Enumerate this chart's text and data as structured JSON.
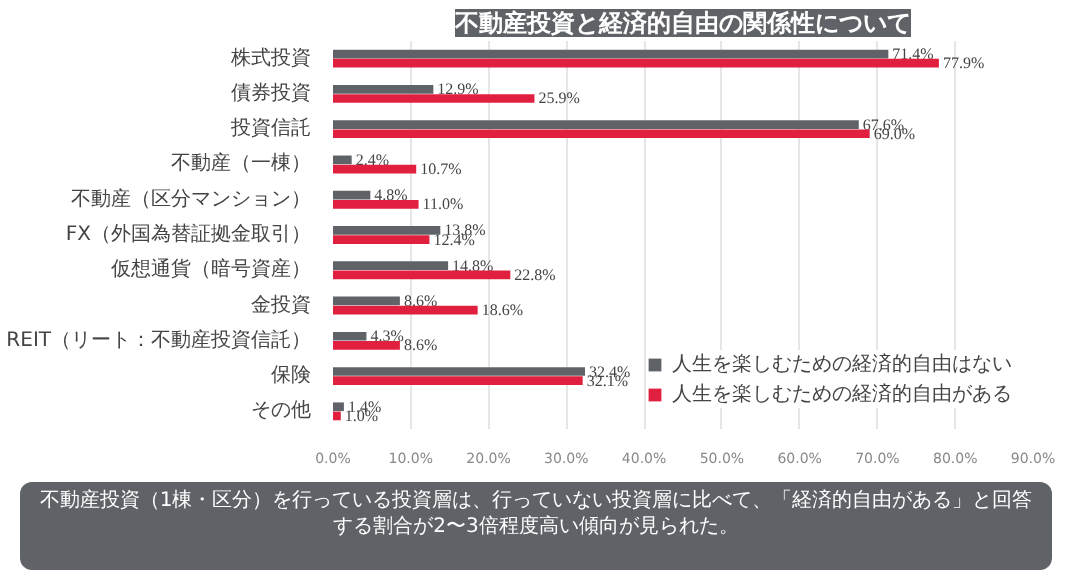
{
  "chart_data": {
    "type": "bar",
    "orientation": "horizontal",
    "title": "不動産投資と経済的自由の関係性について",
    "categories": [
      "株式投資",
      "債券投資",
      "投資信託",
      "不動産（一棟）",
      "不動産（区分マンション）",
      "FX（外国為替証拠金取引）",
      "仮想通貨（暗号資産）",
      "金投資",
      "REIT（リート：不動産投資信託）",
      "保険",
      "その他"
    ],
    "series": [
      {
        "name": "人生を楽しむための経済的自由はない",
        "color": "#5f6368",
        "values": [
          71.4,
          12.9,
          67.6,
          2.4,
          4.8,
          13.8,
          14.8,
          8.6,
          4.3,
          32.4,
          1.4
        ],
        "value_labels": [
          "71.4%",
          "12.9%",
          "67.6%",
          "2.4%",
          "4.8%",
          "13.8%",
          "14.8%",
          "8.6%",
          "4.3%",
          "32.4%",
          "1.4%"
        ]
      },
      {
        "name": "人生を楽しむための経済的自由がある",
        "color": "#e0203e",
        "values": [
          77.9,
          25.9,
          69.0,
          10.7,
          11.0,
          12.4,
          22.8,
          18.6,
          8.6,
          32.1,
          1.0
        ],
        "value_labels": [
          "77.9%",
          "25.9%",
          "69.0%",
          "10.7%",
          "11.0%",
          "12.4%",
          "22.8%",
          "18.6%",
          "8.6%",
          "32.1%",
          "1.0%"
        ]
      }
    ],
    "xlim": [
      0,
      90
    ],
    "xticks": [
      {
        "value": 0,
        "label": "0.0%"
      },
      {
        "value": 10,
        "label": "10.0%"
      },
      {
        "value": 20,
        "label": "20.0%"
      },
      {
        "value": 30,
        "label": "30.0%"
      },
      {
        "value": 40,
        "label": "40.0%"
      },
      {
        "value": 50,
        "label": "50.0%"
      },
      {
        "value": 60,
        "label": "60.0%"
      },
      {
        "value": 70,
        "label": "70.0%"
      },
      {
        "value": 80,
        "label": "80.0%"
      },
      {
        "value": 90,
        "label": "90.0%"
      }
    ],
    "grid": "x",
    "legend": "bottom right",
    "annotations": [
      "不動産投資（1棟・区分）を行っている投資層は、行っていない投資層に比べて、「経済的自由がある」と回答する割合が2〜3倍程度高い傾向が見られた。"
    ]
  }
}
